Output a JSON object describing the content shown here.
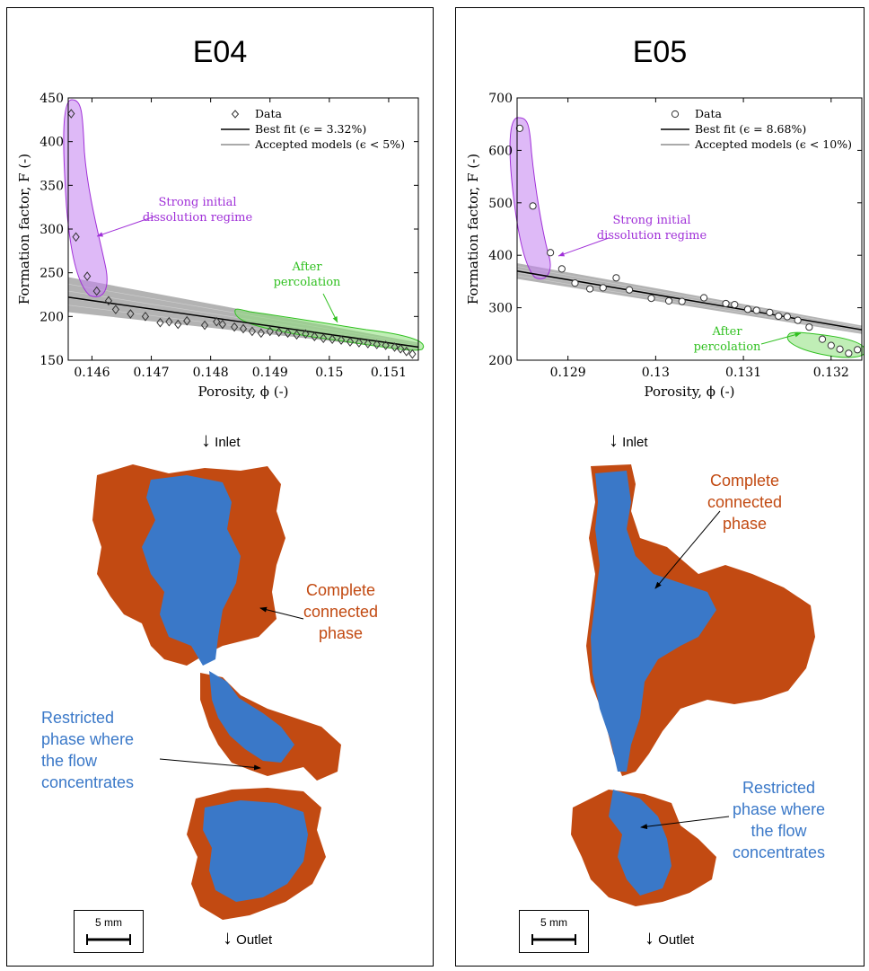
{
  "chart_data": [
    {
      "type": "scatter",
      "title": "E04",
      "xlabel": "Porosity, ϕ (-)",
      "ylabel": "Formation factor, F (-)",
      "xlim": [
        0.1456,
        0.1515
      ],
      "ylim": [
        150,
        450
      ],
      "xticks": [
        "0.146",
        "0.147",
        "0.148",
        "0.149",
        "0.15",
        "0.151"
      ],
      "xtick_values": [
        0.146,
        0.147,
        0.148,
        0.149,
        0.15,
        0.151
      ],
      "yticks": [
        "150",
        "200",
        "250",
        "300",
        "350",
        "400",
        "450"
      ],
      "ytick_values": [
        150,
        200,
        250,
        300,
        350,
        400,
        450
      ],
      "marker": "diamond",
      "legend": {
        "placement": "top-right",
        "data": "Data",
        "best_fit": "Best fit (ϵ = 3.32%)",
        "accepted": "Accepted models (ϵ < 5%)"
      },
      "best_fit": {
        "x": [
          0.1456,
          0.1515
        ],
        "y": [
          222,
          165
        ]
      },
      "band": {
        "x": [
          0.1456,
          0.1515
        ],
        "upper": [
          245,
          170
        ],
        "lower": [
          205,
          161
        ]
      },
      "series": [
        {
          "name": "Data",
          "x": [
            0.14565,
            0.14573,
            0.14592,
            0.14608,
            0.14628,
            0.1464,
            0.14665,
            0.1469,
            0.14715,
            0.1473,
            0.14745,
            0.1476,
            0.1479,
            0.1481,
            0.1482,
            0.1484,
            0.14855,
            0.1487,
            0.14885,
            0.149,
            0.14915,
            0.1493,
            0.14945,
            0.1496,
            0.14975,
            0.1499,
            0.15005,
            0.1502,
            0.15035,
            0.1505,
            0.15065,
            0.1508,
            0.15095,
            0.1511,
            0.1512,
            0.1513,
            0.1514
          ],
          "y": [
            432,
            291,
            246,
            229,
            218,
            208,
            203,
            200,
            193,
            194,
            191,
            195,
            190,
            194,
            191,
            188,
            186,
            183,
            181,
            183,
            182,
            181,
            179,
            180,
            177,
            175,
            174,
            173,
            171,
            170,
            169,
            168,
            167,
            165,
            163,
            160,
            157
          ]
        }
      ],
      "annotations": [
        {
          "text": "Strong initial\ndissolution regime",
          "color": "#a030d8"
        },
        {
          "text": "After\npercolation",
          "color": "#30c020"
        }
      ]
    },
    {
      "type": "scatter",
      "title": "E05",
      "xlabel": "Porosity, ϕ (-)",
      "ylabel": "Formation factor, F (-)",
      "xlim": [
        0.12842,
        0.13235
      ],
      "ylim": [
        200,
        700
      ],
      "xticks": [
        "0.129",
        "0.13",
        "0.131",
        "0.132"
      ],
      "xtick_values": [
        0.129,
        0.13,
        0.131,
        0.132
      ],
      "yticks": [
        "200",
        "300",
        "400",
        "500",
        "600",
        "700"
      ],
      "ytick_values": [
        200,
        300,
        400,
        500,
        600,
        700
      ],
      "marker": "circle",
      "legend": {
        "placement": "top-right",
        "data": "Data",
        "best_fit": "Best fit (ϵ = 8.68%)",
        "accepted": "Accepted models (ϵ < 10%)"
      },
      "best_fit": {
        "x": [
          0.12842,
          0.13235
        ],
        "y": [
          370,
          258
        ]
      },
      "band": {
        "x": [
          0.12842,
          0.13235
        ],
        "upper": [
          385,
          266
        ],
        "lower": [
          355,
          250
        ]
      },
      "series": [
        {
          "name": "Data",
          "x": [
            0.12845,
            0.1286,
            0.1288,
            0.12893,
            0.12908,
            0.12925,
            0.1294,
            0.12955,
            0.1297,
            0.12995,
            0.13015,
            0.1303,
            0.13055,
            0.1308,
            0.1309,
            0.13105,
            0.13115,
            0.1313,
            0.1314,
            0.1315,
            0.13162,
            0.13175,
            0.1319,
            0.132,
            0.1321,
            0.1322,
            0.1323
          ],
          "y": [
            642,
            494,
            405,
            374,
            347,
            336,
            338,
            357,
            334,
            318,
            313,
            312,
            319,
            308,
            306,
            297,
            295,
            291,
            284,
            283,
            276,
            263,
            240,
            228,
            221,
            213,
            220
          ]
        }
      ],
      "annotations": [
        {
          "text": "Strong initial\ndissolution regime",
          "color": "#a030d8"
        },
        {
          "text": "After\npercolation",
          "color": "#30c020"
        }
      ]
    }
  ],
  "panels": {
    "left": {
      "title": "E04",
      "inlet": "Inlet",
      "outlet": "Outlet",
      "scale": "5 mm",
      "complete_label": "Complete\nconnected\nphase",
      "restricted_label": "Restricted\nphase where\nthe flow\nconcentrates"
    },
    "right": {
      "title": "E05",
      "inlet": "Inlet",
      "outlet": "Outlet",
      "scale": "5 mm",
      "complete_label": "Complete\nconnected\nphase",
      "restricted_label": "Restricted\nphase where\nthe flow\nconcentrates"
    }
  },
  "colors": {
    "connected_phase": "#c24a12",
    "restricted_phase": "#3a78c8",
    "initial_regime": "#a030d8",
    "after_percolation": "#30c020"
  }
}
